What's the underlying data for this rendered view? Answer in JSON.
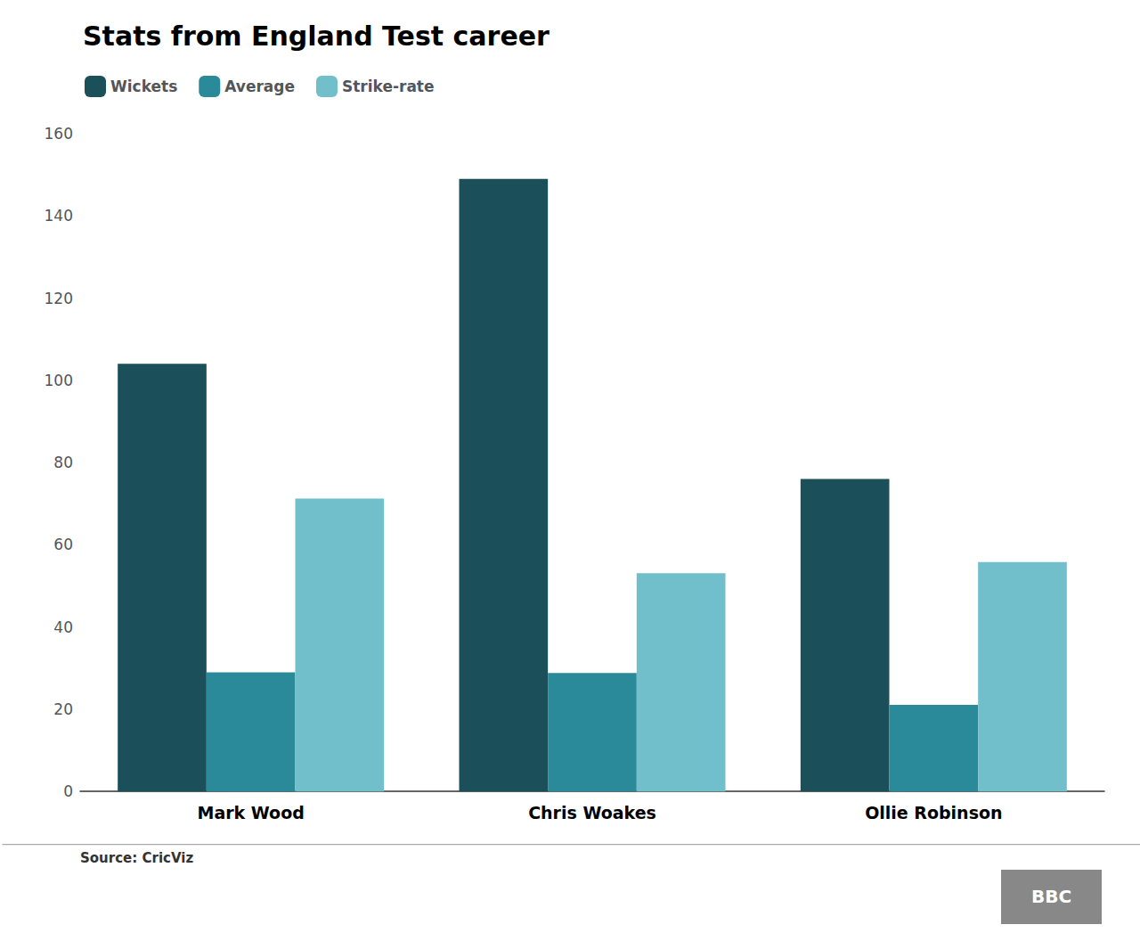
{
  "chart_data": {
    "type": "bar",
    "title": "Stats from England Test career",
    "categories": [
      "Mark Wood",
      "Chris Woakes",
      "Ollie Robinson"
    ],
    "series": [
      {
        "name": "Wickets",
        "values": [
          104,
          149,
          76
        ],
        "color": "#1b4f5a"
      },
      {
        "name": "Average",
        "values": [
          28.96,
          28.83,
          21.05
        ],
        "color": "#2a8a9a"
      },
      {
        "name": "Strike-rate",
        "values": [
          71.22,
          53.06,
          55.78
        ],
        "color": "#72bfcc"
      }
    ],
    "ylim": [
      0,
      160
    ],
    "yticks": [
      0,
      20,
      40,
      60,
      80,
      100,
      120,
      140,
      160
    ],
    "grid": false,
    "legend": "upper left",
    "annotations": [
      "Source: CricViz",
      "BBC"
    ]
  }
}
